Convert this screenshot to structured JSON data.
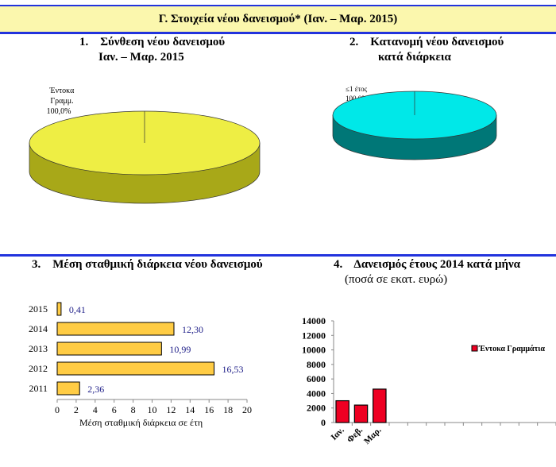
{
  "banner": {
    "title": "Γ. Στοιχεία νέου δανεισμού* (Ιαν. – Μαρ. 2015)"
  },
  "chart_data": [
    {
      "type": "pie",
      "title": "1.    Σύνθεση νέου δανεισμού",
      "subtitle": "Ιαν. – Μαρ. 2015",
      "slices": [
        {
          "label": "Έντοκα Γραμμ.",
          "value": 100.0,
          "label_text": "100,0%",
          "color": "#eeee44"
        }
      ]
    },
    {
      "type": "pie",
      "title": "2.    Κατανομή νέου δανεισμού",
      "subtitle": "κατά διάρκεια",
      "slices": [
        {
          "label": "≤1 έτος",
          "value": 100.0,
          "label_text": "100,0%",
          "color": "#00e8e8"
        }
      ]
    },
    {
      "type": "bar",
      "orientation": "horizontal",
      "title": "3.    Μέση σταθμική διάρκεια νέου δανεισμού",
      "xlabel": "Μέση σταθμική διάρκεια σε έτη",
      "xlim": [
        0,
        20
      ],
      "xticks": [
        "0",
        "2",
        "4",
        "6",
        "8",
        "10",
        "12",
        "14",
        "16",
        "18",
        "20"
      ],
      "categories": [
        "2015",
        "2014",
        "2013",
        "2012",
        "2011"
      ],
      "values": [
        0.41,
        12.3,
        10.99,
        16.53,
        2.36
      ],
      "labels": [
        "0,41",
        "12,30",
        "10,99",
        "16,53",
        "2,36"
      ],
      "color": "#ffcc44"
    },
    {
      "type": "bar",
      "title": "4.    Δανεισμός έτους 2014 κατά μήνα",
      "subtitle": "(ποσά σε εκατ. ευρώ)",
      "ylim": [
        0,
        14000
      ],
      "yticks": [
        "14000",
        "12000",
        "10000",
        "8000",
        "6000",
        "4000",
        "2000",
        "0"
      ],
      "categories": [
        "Ιαν.",
        "Φεβ.",
        "Μαρ."
      ],
      "slots": 12,
      "series": [
        {
          "name": "Έντοκα Γραμμάτια",
          "values": [
            3000,
            2400,
            4600
          ],
          "color": "#ee0022"
        }
      ]
    }
  ]
}
